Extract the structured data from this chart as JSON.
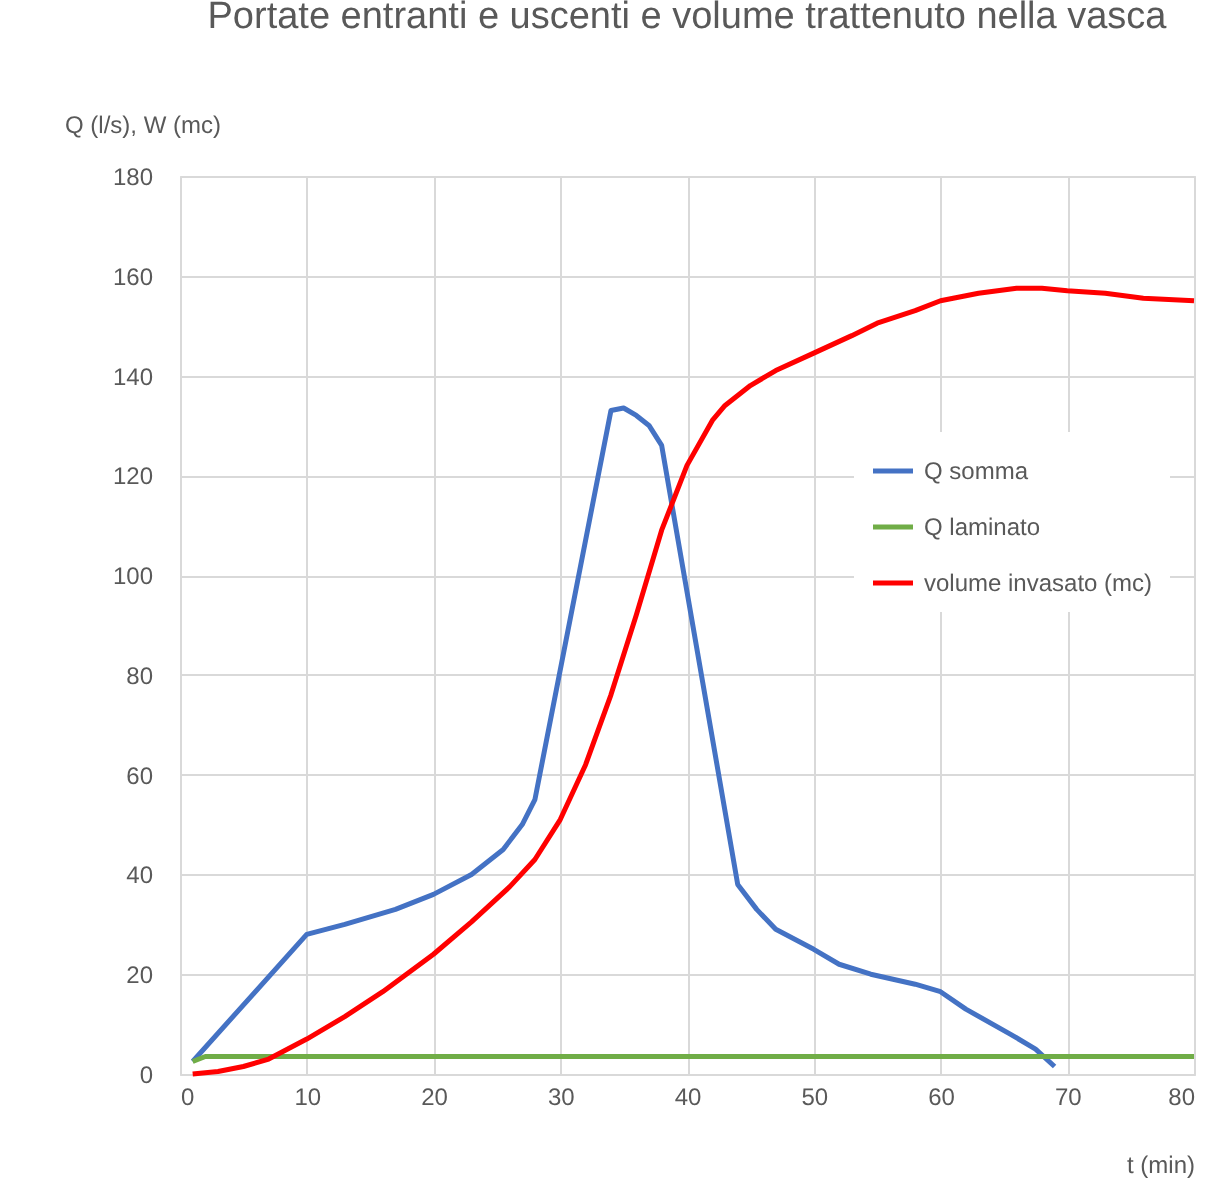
{
  "chart_data": {
    "type": "line",
    "title": "Portate entranti e uscenti e volume trattenuto nella vasca",
    "xlabel": "t (min)",
    "ylabel": "Q (l/s), W (mc)",
    "xlim": [
      0,
      80
    ],
    "xticks": [
      0,
      10,
      20,
      30,
      40,
      50,
      60,
      70,
      80
    ],
    "ylim": [
      0,
      180
    ],
    "yticks": [
      0,
      20,
      40,
      60,
      80,
      100,
      120,
      140,
      160,
      180
    ],
    "grid": true,
    "legend": "right",
    "marker": "none",
    "line_style": "solid",
    "series": [
      {
        "name": "Q somma",
        "color": "#4472c4",
        "x": [
          1,
          10,
          13,
          17,
          20,
          23,
          25.5,
          27,
          28,
          34,
          35,
          36,
          37,
          38,
          44,
          45.5,
          47,
          50,
          52,
          54.5,
          58,
          60,
          62,
          65.5,
          67.5,
          69
        ],
        "values": [
          2.5,
          28,
          30,
          33,
          36,
          40,
          45,
          50,
          55,
          133,
          133.5,
          132,
          130,
          126,
          38,
          33,
          29,
          25,
          22,
          20,
          18,
          16.5,
          13,
          8,
          5,
          1.5
        ]
      },
      {
        "name": "Q laminato",
        "color": "#70ad47",
        "x": [
          1,
          2,
          80
        ],
        "values": [
          2.5,
          3.5,
          3.5
        ]
      },
      {
        "name": "volume invasato (mc)",
        "color": "#ff0000",
        "x": [
          1,
          3,
          5,
          7,
          10,
          13,
          16,
          20,
          23,
          26,
          28,
          30,
          32,
          34,
          36,
          38,
          40,
          42,
          43,
          45,
          47,
          50,
          53,
          55,
          58,
          60,
          63,
          66,
          68,
          70,
          73,
          76,
          80
        ],
        "values": [
          0,
          0.5,
          1.5,
          3,
          7,
          11.5,
          16.5,
          24,
          30.5,
          37.5,
          43,
          51,
          62,
          76,
          92,
          109,
          122,
          131,
          134,
          138,
          141,
          144.5,
          148,
          150.5,
          153,
          155,
          156.5,
          157.5,
          157.5,
          157,
          156.5,
          155.5,
          155
        ]
      }
    ]
  }
}
